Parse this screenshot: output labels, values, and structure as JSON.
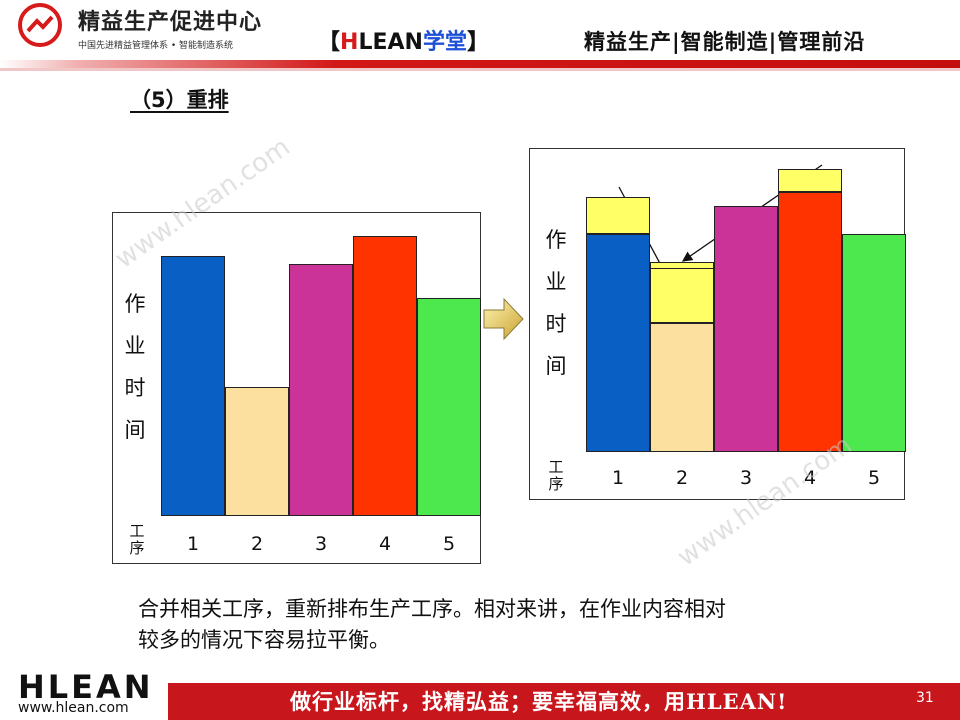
{
  "header": {
    "logo_title": "精益生产促进中心",
    "logo_subtitle": "中国先进精益管理体系 • 智能制造系统",
    "brand_open": "【",
    "brand_h": "H",
    "brand_lean": "LEAN",
    "brand_school": "学堂",
    "brand_close": "】",
    "slogan": "精益生产|智能制造|管理前沿"
  },
  "section_title": "（5）重排",
  "chart_data": [
    {
      "type": "bar",
      "title": "",
      "ylabel": "作业时间",
      "xlabel": "工序",
      "categories": [
        "1",
        "2",
        "3",
        "4",
        "5"
      ],
      "series": [
        {
          "values": [
            9.3,
            4.6,
            9.0,
            10.0,
            7.8
          ]
        }
      ],
      "colors": [
        "#0a5fc4",
        "#fbe0a0",
        "#cc3399",
        "#ff3300",
        "#4de84d"
      ],
      "ylim": [
        0,
        10
      ]
    },
    {
      "type": "bar",
      "title": "",
      "ylabel": "作业时间",
      "xlabel": "工序",
      "categories": [
        "1",
        "2",
        "3",
        "4",
        "5"
      ],
      "series": [
        {
          "values": [
            7.8,
            4.6,
            8.8,
            9.3,
            7.8
          ]
        },
        {
          "values": [
            1.3,
            2.2,
            0,
            0.8,
            0
          ]
        }
      ],
      "colors": [
        "#0a5fc4",
        "#fbe0a0",
        "#cc3399",
        "#ff3300",
        "#4de84d"
      ],
      "added_color": "#ffff66",
      "ylim": [
        0,
        10
      ]
    }
  ],
  "watermark": "www.hlean.com",
  "caption_line1": "合并相关工序，重新排布生产工序。相对来讲，在作业内容相对",
  "caption_line2": "较多的情况下容易拉平衡。",
  "footer": {
    "logo": "HLEAN",
    "url": "www.hlean.com",
    "slogan": "做行业标杆，找精弘益；要幸福高效，用HLEAN!",
    "page": "31"
  }
}
